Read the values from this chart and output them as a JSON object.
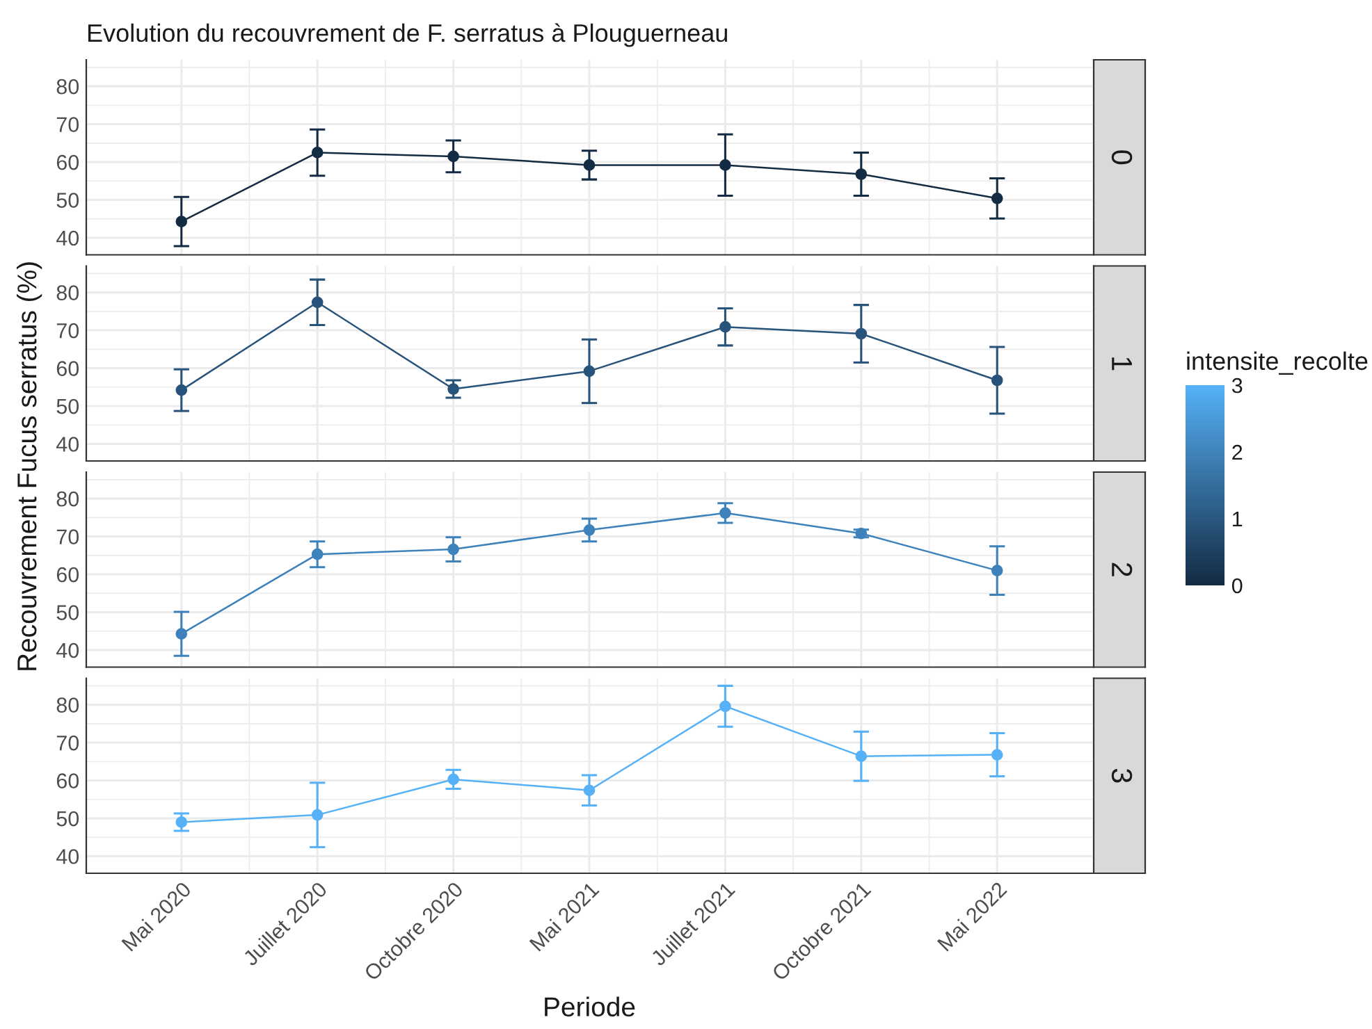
{
  "chart_data": [
    {
      "type": "line",
      "title": "Evolution du recouvrement de F. serratus à Plouguerneau",
      "categories": [
        null,
        null,
        null,
        null,
        null,
        null,
        null
      ],
      "ylim": [
        35.5,
        87
      ],
      "yticks": [
        40,
        50,
        60,
        70,
        80
      ],
      "grid": true,
      "marker": "circle",
      "tick_labels": "y",
      "series": [
        {
          "name": "0",
          "color": "#132b43",
          "values": [
            44.3,
            62.5,
            61.5,
            59.2,
            59.2,
            56.8,
            50.4
          ],
          "errors": [
            6.5,
            6.1,
            4.2,
            3.8,
            8.1,
            5.7,
            5.3
          ]
        }
      ]
    },
    {
      "type": "line",
      "ylabel": "Recouvrement Fucus serratus (%)",
      "clabel": "intensite_recolte",
      "clim": [
        0,
        3
      ],
      "cticks": [
        0,
        1,
        2,
        3
      ],
      "categories": [
        null,
        null,
        null,
        null,
        null,
        null,
        null
      ],
      "ylim": [
        35.5,
        87
      ],
      "yticks": [
        40,
        50,
        60,
        70,
        80
      ],
      "grid": true,
      "marker": "circle",
      "tick_labels": "y",
      "series": [
        {
          "name": "1",
          "color": "#28537a",
          "values": [
            54.2,
            77.4,
            54.5,
            59.2,
            70.9,
            69.1,
            56.8
          ],
          "errors": [
            5.5,
            6.0,
            2.3,
            8.4,
            4.9,
            7.6,
            8.8
          ]
        }
      ]
    },
    {
      "type": "line",
      "categories": [
        null,
        null,
        null,
        null,
        null,
        null,
        null
      ],
      "ylim": [
        35.5,
        87
      ],
      "yticks": [
        40,
        50,
        60,
        70,
        80
      ],
      "grid": true,
      "marker": "circle",
      "tick_labels": "y",
      "series": [
        {
          "name": "2",
          "color": "#3d82bb",
          "values": [
            44.3,
            65.3,
            66.6,
            71.7,
            76.2,
            70.8,
            61.0
          ],
          "errors": [
            5.8,
            3.4,
            3.2,
            3.0,
            2.6,
            1.0,
            6.4
          ]
        }
      ]
    },
    {
      "type": "line",
      "xlabel": "Periode",
      "categories": [
        "Mai 2020",
        "Juillet 2020",
        "Octobre 2020",
        "Mai 2021",
        "Juillet 2021",
        "Octobre 2021",
        "Mai 2022"
      ],
      "ylim": [
        35.5,
        87
      ],
      "yticks": [
        40,
        50,
        60,
        70,
        80
      ],
      "grid": true,
      "marker": "circle",
      "series": [
        {
          "name": "3",
          "color": "#56b1f7",
          "values": [
            49.0,
            50.9,
            60.3,
            57.4,
            79.6,
            66.4,
            66.8
          ],
          "errors": [
            2.3,
            8.5,
            2.5,
            4.0,
            5.4,
            6.5,
            5.7
          ]
        }
      ]
    }
  ]
}
